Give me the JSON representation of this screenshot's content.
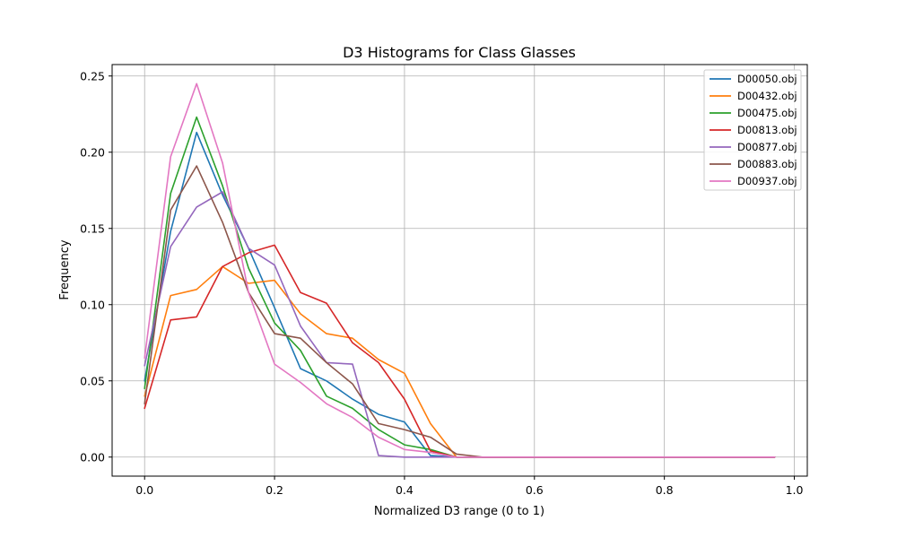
{
  "chart_data": {
    "type": "line",
    "title": "D3 Histograms for Class Glasses",
    "xlabel": "Normalized D3 range (0 to 1)",
    "ylabel": "Frequency",
    "xlim": [
      -0.05,
      1.02
    ],
    "ylim": [
      -0.0125,
      0.2575
    ],
    "xticks": [
      0.0,
      0.2,
      0.4,
      0.6,
      0.8,
      1.0
    ],
    "xtick_labels": [
      "0.0",
      "0.2",
      "0.4",
      "0.6",
      "0.8",
      "1.0"
    ],
    "yticks": [
      0.0,
      0.05,
      0.1,
      0.15,
      0.2,
      0.25
    ],
    "ytick_labels": [
      "0.00",
      "0.05",
      "0.10",
      "0.15",
      "0.20",
      "0.25"
    ],
    "grid": true,
    "legend_position": "top-right",
    "x": [
      0.0,
      0.04,
      0.08,
      0.12,
      0.16,
      0.2,
      0.24,
      0.28,
      0.32,
      0.36,
      0.4,
      0.44,
      0.48,
      0.52,
      0.56,
      0.6,
      0.64,
      0.68,
      0.72,
      0.76,
      0.8,
      0.84,
      0.88,
      0.92,
      0.97
    ],
    "series": [
      {
        "name": "D00050.obj",
        "color": "#1f77b4",
        "values": [
          0.05,
          0.148,
          0.213,
          0.172,
          0.137,
          0.098,
          0.058,
          0.05,
          0.038,
          0.028,
          0.023,
          0.001,
          0.0,
          0,
          0,
          0,
          0,
          0,
          0,
          0,
          0,
          0,
          0,
          0,
          0
        ]
      },
      {
        "name": "D00432.obj",
        "color": "#ff7f0e",
        "values": [
          0.04,
          0.106,
          0.11,
          0.125,
          0.114,
          0.116,
          0.094,
          0.081,
          0.078,
          0.064,
          0.055,
          0.022,
          0.0,
          0,
          0,
          0,
          0,
          0,
          0,
          0,
          0,
          0,
          0,
          0,
          0
        ]
      },
      {
        "name": "D00475.obj",
        "color": "#2ca02c",
        "values": [
          0.045,
          0.173,
          0.223,
          0.178,
          0.124,
          0.088,
          0.07,
          0.04,
          0.032,
          0.018,
          0.008,
          0.005,
          0.0,
          0,
          0,
          0,
          0,
          0,
          0,
          0,
          0,
          0,
          0,
          0,
          0
        ]
      },
      {
        "name": "D00813.obj",
        "color": "#d62728",
        "values": [
          0.032,
          0.09,
          0.092,
          0.125,
          0.134,
          0.139,
          0.108,
          0.101,
          0.075,
          0.062,
          0.038,
          0.004,
          0.0,
          0,
          0,
          0,
          0,
          0,
          0,
          0,
          0,
          0,
          0,
          0,
          0
        ]
      },
      {
        "name": "D00877.obj",
        "color": "#9467bd",
        "values": [
          0.06,
          0.138,
          0.164,
          0.174,
          0.137,
          0.126,
          0.086,
          0.062,
          0.061,
          0.001,
          0.0,
          0.0,
          0.0,
          0,
          0,
          0,
          0,
          0,
          0,
          0,
          0,
          0,
          0,
          0,
          0
        ]
      },
      {
        "name": "D00883.obj",
        "color": "#8c564b",
        "values": [
          0.035,
          0.162,
          0.191,
          0.154,
          0.108,
          0.081,
          0.078,
          0.062,
          0.048,
          0.022,
          0.018,
          0.013,
          0.002,
          0.0,
          0,
          0,
          0,
          0,
          0,
          0,
          0,
          0,
          0,
          0,
          0
        ]
      },
      {
        "name": "D00937.obj",
        "color": "#e377c2",
        "values": [
          0.065,
          0.197,
          0.245,
          0.193,
          0.108,
          0.061,
          0.049,
          0.035,
          0.026,
          0.013,
          0.005,
          0.003,
          0.0,
          0,
          0,
          0,
          0,
          0,
          0,
          0,
          0,
          0,
          0,
          0,
          0
        ]
      }
    ]
  }
}
